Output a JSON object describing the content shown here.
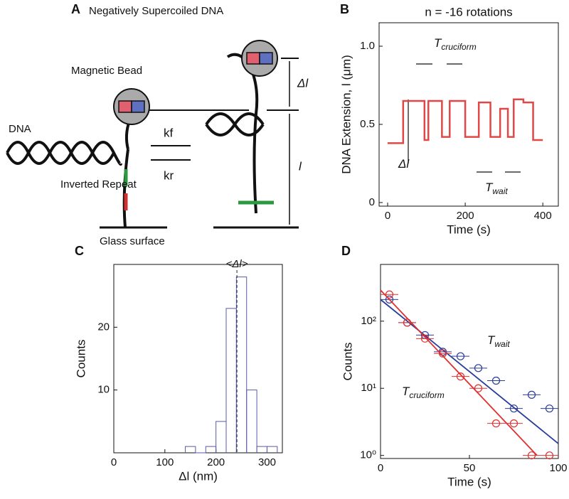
{
  "diagram": {
    "panel_label": "A",
    "title": "Negatively Supercoiled DNA",
    "bead": "Magnetic Bead",
    "dna": "DNA",
    "repeat": "Inverted Repeat",
    "surface": "Glass surface",
    "kf": "kf",
    "kr": "kr",
    "delta_l": "Δl",
    "l": "l"
  },
  "chart_data": [
    {
      "type": "line",
      "panel_label": "B",
      "title": "n = -16 rotations",
      "xlabel": "Time (s)",
      "ylabel": "DNA Extension, l (μm)",
      "x": [
        0,
        40,
        40,
        95,
        95,
        105,
        105,
        140,
        140,
        160,
        160,
        200,
        200,
        235,
        235,
        265,
        265,
        290,
        290,
        310,
        310,
        325,
        325,
        350,
        350,
        375,
        375,
        400
      ],
      "values": [
        0.38,
        0.38,
        0.65,
        0.65,
        0.4,
        0.4,
        0.65,
        0.65,
        0.42,
        0.42,
        0.65,
        0.65,
        0.42,
        0.42,
        0.64,
        0.64,
        0.42,
        0.42,
        0.6,
        0.6,
        0.42,
        0.42,
        0.66,
        0.66,
        0.64,
        0.64,
        0.4,
        0.4
      ],
      "color": "#e04848",
      "xlim": [
        -22,
        440
      ],
      "ylim": [
        -0.023,
        1.15
      ],
      "xticks": [
        0,
        200,
        400
      ],
      "yticks": [
        0,
        0.5,
        {
          "value": 1,
          "label": "1.0"
        }
      ],
      "annotations": [
        {
          "symbol": "T",
          "subscript": "cruciform",
          "color": "#d62828"
        },
        {
          "symbol": "T",
          "subscript": "wait",
          "color": "#2a3d9a"
        },
        {
          "symbol": "Δl",
          "color": "#111111"
        }
      ]
    },
    {
      "type": "histogram",
      "panel_label": "C",
      "xlabel": "Δl (nm)",
      "ylabel": "Counts",
      "bins": [
        140,
        160,
        180,
        200,
        220,
        240,
        260,
        280,
        300,
        320
      ],
      "counts": [
        1,
        0,
        1,
        5,
        23,
        28,
        10,
        1,
        1
      ],
      "color": "#5a5aa8",
      "xlim": [
        0,
        330
      ],
      "ylim": [
        0,
        30
      ],
      "xticks": [
        0,
        100,
        200,
        300
      ],
      "yticks": [
        10,
        20
      ],
      "mean_line": {
        "value": 241,
        "label": "<Δl>"
      }
    },
    {
      "type": "scatter",
      "panel_label": "D",
      "xlabel": "Time (s)",
      "ylabel": "Counts",
      "log_y": true,
      "x": [
        5,
        15,
        25,
        35,
        45,
        55,
        65,
        75,
        85,
        95
      ],
      "series": [
        {
          "name": "T",
          "subscript": "wait",
          "color": "#2a3d9a",
          "values": [
            210,
            95,
            62,
            35,
            30,
            20,
            13,
            5,
            8,
            5
          ],
          "fit_x": [
            0,
            100
          ],
          "fit_values": [
            210,
            1.5
          ]
        },
        {
          "name": "T",
          "subscript": "cruciform",
          "color": "#e03030",
          "values": [
            250,
            95,
            55,
            33,
            15,
            10,
            3,
            3,
            1,
            1
          ],
          "fit_x": [
            0,
            88
          ],
          "fit_values": [
            290,
            1
          ]
        }
      ],
      "xlim": [
        0,
        100
      ],
      "ylim": [
        0.9,
        700
      ],
      "xticks": [
        0,
        50,
        100
      ],
      "yticks": [
        {
          "value": 1,
          "label": "10⁰"
        },
        {
          "value": 10,
          "label": "10¹"
        },
        {
          "value": 100,
          "label": "10²"
        }
      ]
    }
  ]
}
